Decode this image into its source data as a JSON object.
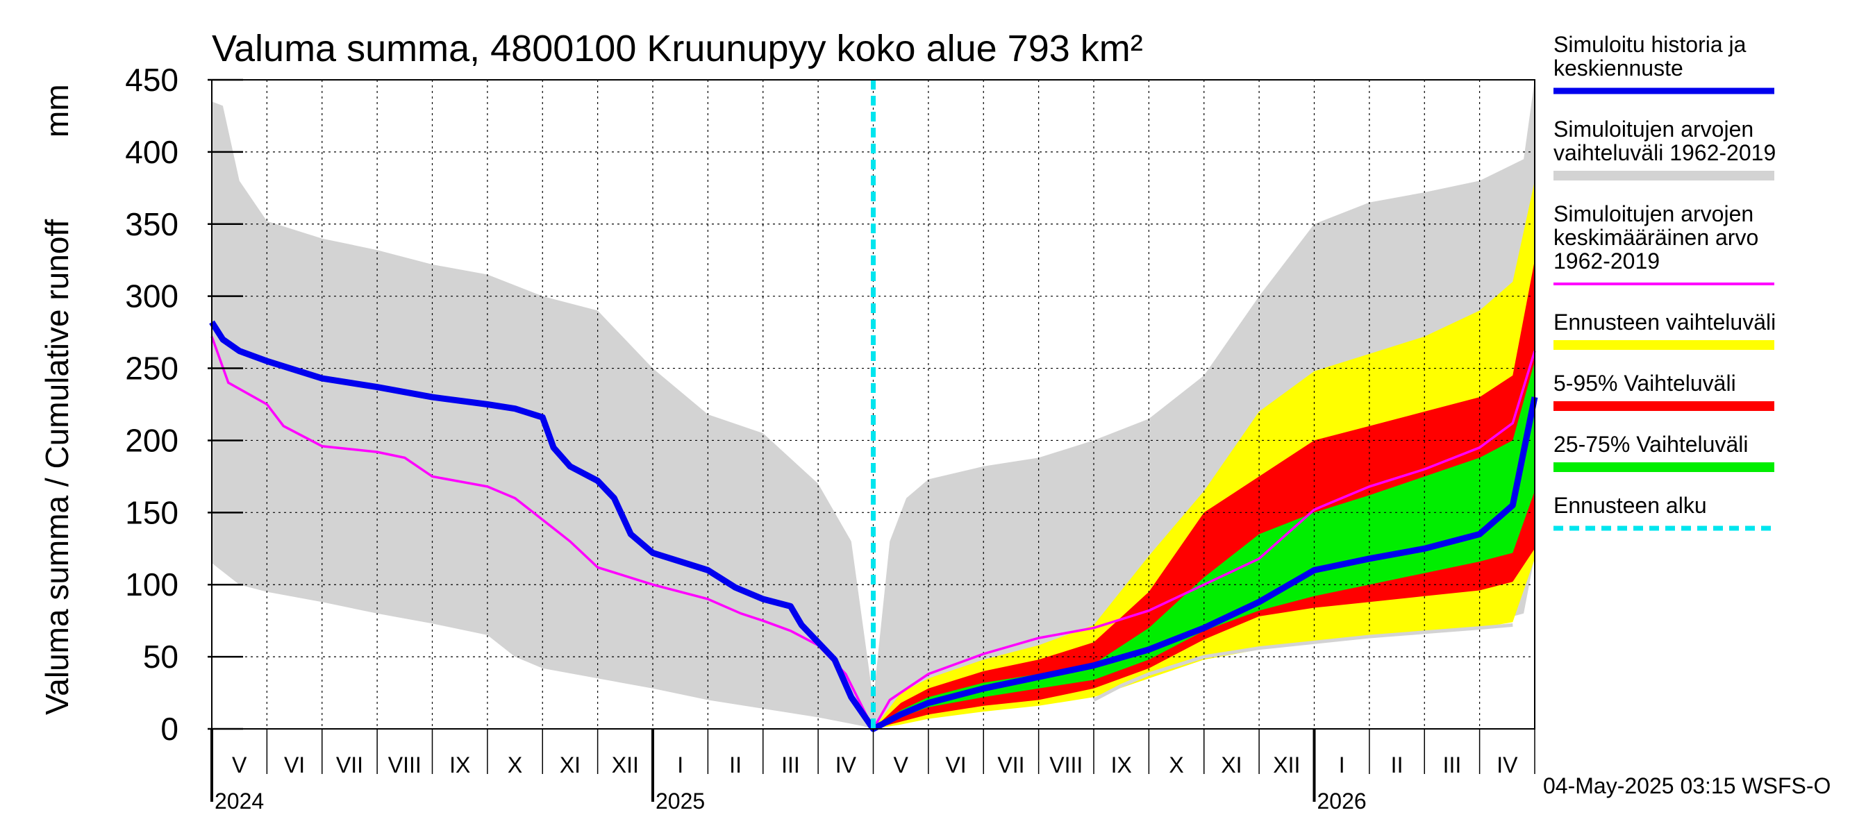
{
  "title": "Valuma summa, 4800100 Kruunupyy koko alue 793 km²",
  "y_label_fi": "Valuma summa / Cumulative runoff",
  "y_label_unit": "mm",
  "timestamp": "04-May-2025 03:15 WSFS-O",
  "chart_data": {
    "type": "area",
    "ylim": [
      0,
      450
    ],
    "yticks": [
      0,
      50,
      100,
      150,
      200,
      250,
      300,
      350,
      400,
      450
    ],
    "x_range_months": [
      0,
      24
    ],
    "forecast_start_month": 12,
    "months": [
      "V",
      "VI",
      "VII",
      "VIII",
      "IX",
      "X",
      "XI",
      "XII",
      "I",
      "II",
      "III",
      "IV",
      "V",
      "VI",
      "VII",
      "VIII",
      "IX",
      "X",
      "XI",
      "XII",
      "I",
      "II",
      "III",
      "IV"
    ],
    "years": [
      {
        "label": "2024",
        "month_index": 0
      },
      {
        "label": "2025",
        "month_index": 8
      },
      {
        "label": "2026",
        "month_index": 20
      }
    ],
    "legend": [
      {
        "text": [
          "Simuloitu historia ja",
          "keskiennuste"
        ],
        "color": "#0000ee",
        "style": "line"
      },
      {
        "text": [
          "Simuloitujen arvojen",
          "vaihteluväli 1962-2019"
        ],
        "color": "#d3d3d3",
        "style": "band"
      },
      {
        "text": [
          "Simuloitujen arvojen",
          "keskimääräinen arvo",
          "   1962-2019"
        ],
        "color": "#ff00ff",
        "style": "thin"
      },
      {
        "text": [
          "Ennusteen vaihteluväli"
        ],
        "color": "#ffff00",
        "style": "band"
      },
      {
        "text": [
          "5-95% Vaihteluväli"
        ],
        "color": "#ff0000",
        "style": "band"
      },
      {
        "text": [
          "25-75% Vaihteluväli"
        ],
        "color": "#00ee00",
        "style": "band"
      },
      {
        "text": [
          "Ennusteen alku"
        ],
        "color": "#00e5ee",
        "style": "dashed"
      }
    ],
    "series": {
      "hist_range_upper": [
        [
          0,
          435
        ],
        [
          0.2,
          432
        ],
        [
          0.5,
          380
        ],
        [
          1,
          352
        ],
        [
          2,
          340
        ],
        [
          3,
          332
        ],
        [
          4,
          322
        ],
        [
          5,
          315
        ],
        [
          6,
          300
        ],
        [
          7,
          290
        ],
        [
          8,
          250
        ],
        [
          9,
          218
        ],
        [
          10,
          205
        ],
        [
          11,
          170
        ],
        [
          11.6,
          130
        ],
        [
          12,
          20
        ],
        [
          12.3,
          130
        ],
        [
          12.6,
          160
        ],
        [
          13,
          173
        ],
        [
          14,
          182
        ],
        [
          15,
          188
        ],
        [
          16,
          200
        ],
        [
          17,
          215
        ],
        [
          18,
          245
        ],
        [
          19,
          300
        ],
        [
          20,
          350
        ],
        [
          21,
          365
        ],
        [
          22,
          372
        ],
        [
          23,
          380
        ],
        [
          23.8,
          395
        ],
        [
          24,
          450
        ]
      ],
      "hist_range_lower": [
        [
          0,
          115
        ],
        [
          0.5,
          100
        ],
        [
          1,
          95
        ],
        [
          2,
          88
        ],
        [
          3,
          80
        ],
        [
          4,
          73
        ],
        [
          5,
          65
        ],
        [
          5.5,
          50
        ],
        [
          6,
          42
        ],
        [
          7,
          35
        ],
        [
          8,
          28
        ],
        [
          9,
          20
        ],
        [
          10,
          14
        ],
        [
          11,
          8
        ],
        [
          11.8,
          2
        ],
        [
          12,
          0
        ],
        [
          12.5,
          3
        ],
        [
          13,
          8
        ],
        [
          14,
          14
        ],
        [
          15,
          18
        ],
        [
          16,
          25
        ],
        [
          17,
          38
        ],
        [
          18,
          52
        ],
        [
          19,
          58
        ],
        [
          20,
          62
        ],
        [
          21,
          65
        ],
        [
          22,
          68
        ],
        [
          23,
          72
        ],
        [
          23.8,
          80
        ],
        [
          24,
          120
        ]
      ],
      "forecast_range_upper": [
        [
          12,
          0
        ],
        [
          12.5,
          25
        ],
        [
          13,
          35
        ],
        [
          14,
          48
        ],
        [
          15,
          58
        ],
        [
          16,
          72
        ],
        [
          17,
          120
        ],
        [
          18,
          165
        ],
        [
          19,
          220
        ],
        [
          20,
          248
        ],
        [
          21,
          260
        ],
        [
          22,
          272
        ],
        [
          23,
          290
        ],
        [
          23.6,
          310
        ],
        [
          24,
          380
        ]
      ],
      "forecast_range_lower": [
        [
          12,
          0
        ],
        [
          12.5,
          3
        ],
        [
          13,
          7
        ],
        [
          14,
          12
        ],
        [
          15,
          16
        ],
        [
          16,
          22
        ],
        [
          17,
          35
        ],
        [
          18,
          48
        ],
        [
          19,
          55
        ],
        [
          20,
          60
        ],
        [
          21,
          63
        ],
        [
          22,
          66
        ],
        [
          23,
          70
        ],
        [
          23.6,
          74
        ],
        [
          24,
          118
        ]
      ],
      "p5_95_upper": [
        [
          12,
          0
        ],
        [
          12.5,
          18
        ],
        [
          13,
          28
        ],
        [
          14,
          40
        ],
        [
          15,
          48
        ],
        [
          16,
          60
        ],
        [
          17,
          95
        ],
        [
          18,
          150
        ],
        [
          19,
          175
        ],
        [
          20,
          200
        ],
        [
          21,
          210
        ],
        [
          22,
          220
        ],
        [
          23,
          230
        ],
        [
          23.6,
          245
        ],
        [
          24,
          325
        ]
      ],
      "p5_95_lower": [
        [
          12,
          0
        ],
        [
          12.5,
          5
        ],
        [
          13,
          10
        ],
        [
          14,
          16
        ],
        [
          15,
          20
        ],
        [
          16,
          28
        ],
        [
          17,
          42
        ],
        [
          18,
          62
        ],
        [
          19,
          78
        ],
        [
          20,
          84
        ],
        [
          21,
          88
        ],
        [
          22,
          92
        ],
        [
          23,
          96
        ],
        [
          23.6,
          102
        ],
        [
          24,
          125
        ]
      ],
      "p25_75_upper": [
        [
          12,
          0
        ],
        [
          12.5,
          13
        ],
        [
          13,
          22
        ],
        [
          14,
          32
        ],
        [
          15,
          38
        ],
        [
          16,
          45
        ],
        [
          17,
          70
        ],
        [
          18,
          105
        ],
        [
          19,
          135
        ],
        [
          20,
          150
        ],
        [
          21,
          162
        ],
        [
          22,
          175
        ],
        [
          23,
          188
        ],
        [
          23.6,
          200
        ],
        [
          24,
          255
        ]
      ],
      "p25_75_lower": [
        [
          12,
          0
        ],
        [
          12.5,
          8
        ],
        [
          13,
          15
        ],
        [
          14,
          22
        ],
        [
          15,
          28
        ],
        [
          16,
          34
        ],
        [
          17,
          48
        ],
        [
          18,
          68
        ],
        [
          19,
          82
        ],
        [
          20,
          92
        ],
        [
          21,
          100
        ],
        [
          22,
          108
        ],
        [
          23,
          116
        ],
        [
          23.6,
          122
        ],
        [
          24,
          165
        ]
      ],
      "mean": [
        [
          0,
          272
        ],
        [
          0.3,
          240
        ],
        [
          1,
          225
        ],
        [
          1.3,
          210
        ],
        [
          2,
          196
        ],
        [
          3,
          192
        ],
        [
          3.5,
          188
        ],
        [
          4,
          175
        ],
        [
          5,
          168
        ],
        [
          5.5,
          160
        ],
        [
          6,
          145
        ],
        [
          6.5,
          130
        ],
        [
          7,
          112
        ],
        [
          8,
          100
        ],
        [
          9,
          90
        ],
        [
          9.6,
          80
        ],
        [
          10,
          75
        ],
        [
          10.5,
          68
        ],
        [
          11,
          58
        ],
        [
          11.5,
          38
        ],
        [
          12,
          0
        ],
        [
          12.3,
          20
        ],
        [
          13,
          38
        ],
        [
          14,
          52
        ],
        [
          15,
          63
        ],
        [
          16,
          70
        ],
        [
          17,
          82
        ],
        [
          18,
          100
        ],
        [
          19,
          118
        ],
        [
          20,
          152
        ],
        [
          21,
          168
        ],
        [
          22,
          180
        ],
        [
          23,
          195
        ],
        [
          23.6,
          212
        ],
        [
          24,
          262
        ]
      ],
      "median_sim": [
        [
          0,
          282
        ],
        [
          0.2,
          270
        ],
        [
          0.5,
          262
        ],
        [
          1,
          255
        ],
        [
          2,
          243
        ],
        [
          3,
          237
        ],
        [
          4,
          230
        ],
        [
          5,
          225
        ],
        [
          5.5,
          222
        ],
        [
          6,
          216
        ],
        [
          6.2,
          195
        ],
        [
          6.5,
          182
        ],
        [
          7,
          172
        ],
        [
          7.3,
          160
        ],
        [
          7.6,
          135
        ],
        [
          8,
          122
        ],
        [
          9,
          110
        ],
        [
          9.5,
          98
        ],
        [
          10,
          90
        ],
        [
          10.5,
          85
        ],
        [
          10.7,
          72
        ],
        [
          11,
          60
        ],
        [
          11.3,
          48
        ],
        [
          11.6,
          22
        ],
        [
          12,
          0
        ],
        [
          12.5,
          10
        ],
        [
          13,
          18
        ],
        [
          14,
          28
        ],
        [
          15,
          36
        ],
        [
          16,
          44
        ],
        [
          17,
          55
        ],
        [
          18,
          70
        ],
        [
          19,
          88
        ],
        [
          20,
          110
        ],
        [
          21,
          118
        ],
        [
          22,
          125
        ],
        [
          23,
          135
        ],
        [
          23.6,
          155
        ],
        [
          24,
          230
        ]
      ],
      "sim_gray_line": [
        [
          16,
          20
        ],
        [
          16.5,
          30
        ],
        [
          17,
          38
        ],
        [
          18,
          50
        ],
        [
          19,
          56
        ],
        [
          20,
          60
        ],
        [
          21,
          64
        ],
        [
          22,
          67
        ],
        [
          23,
          70
        ],
        [
          23.6,
          72
        ]
      ]
    }
  }
}
